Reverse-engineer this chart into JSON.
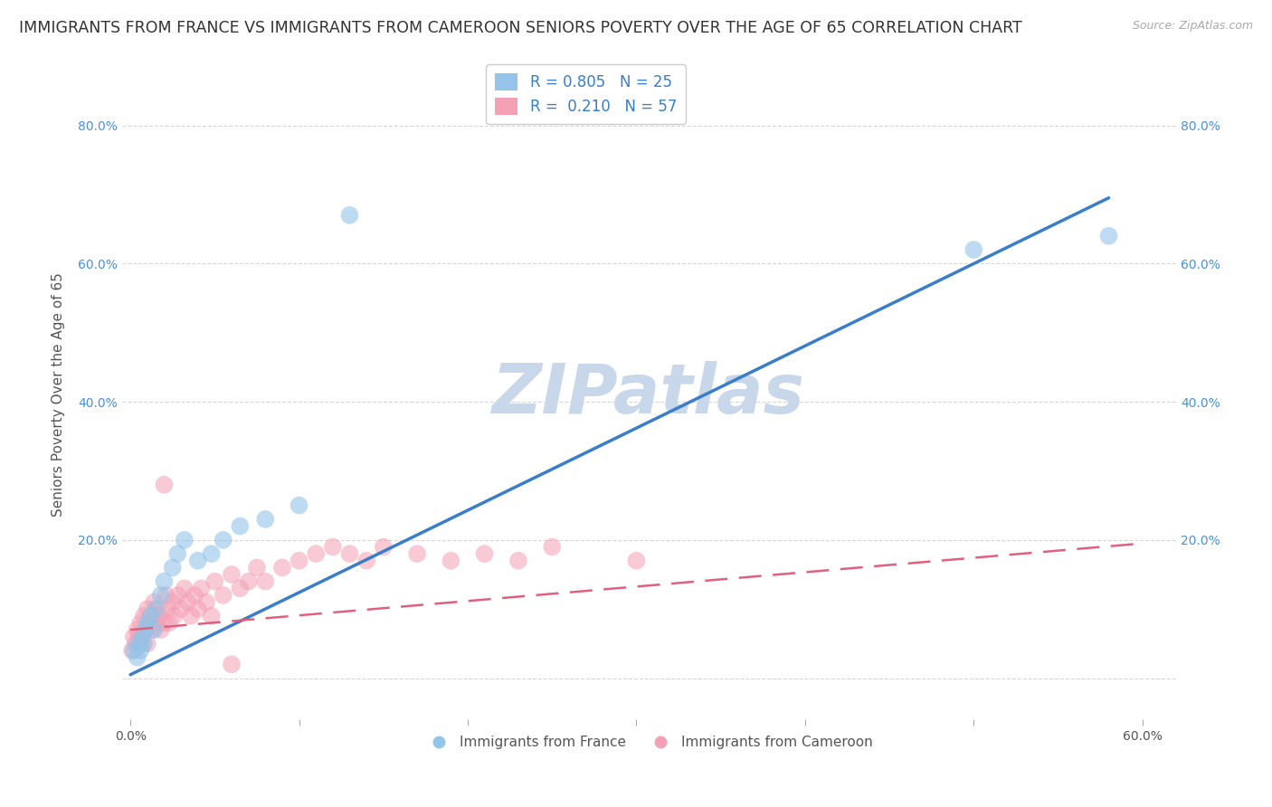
{
  "title": "IMMIGRANTS FROM FRANCE VS IMMIGRANTS FROM CAMEROON SENIORS POVERTY OVER THE AGE OF 65 CORRELATION CHART",
  "source": "Source: ZipAtlas.com",
  "ylabel": "Seniors Poverty Over the Age of 65",
  "watermark": "ZIPatlas",
  "xlim": [
    -0.005,
    0.62
  ],
  "ylim": [
    -0.06,
    0.88
  ],
  "france_color": "#94c4e8",
  "cameroon_color": "#f4a0b5",
  "france_R": 0.805,
  "france_N": 25,
  "cameroon_R": 0.21,
  "cameroon_N": 57,
  "france_line_x": [
    0.0,
    0.58
  ],
  "france_line_y": [
    0.005,
    0.695
  ],
  "cameroon_line_x": [
    0.0,
    0.6
  ],
  "cameroon_line_y": [
    0.07,
    0.195
  ],
  "legend_france_label": "R = 0.805   N = 25",
  "legend_cameroon_label": "R =  0.210   N = 57",
  "legend_bottom_france": "Immigrants from France",
  "legend_bottom_cameroon": "Immigrants from Cameroon",
  "background_color": "#ffffff",
  "grid_color": "#cccccc",
  "title_fontsize": 12.5,
  "axis_label_fontsize": 11,
  "tick_fontsize": 10,
  "legend_fontsize": 12,
  "watermark_color": "#c8d8ea",
  "watermark_fontsize": 55,
  "france_scatter_x": [
    0.002,
    0.004,
    0.005,
    0.006,
    0.007,
    0.008,
    0.009,
    0.01,
    0.012,
    0.014,
    0.015,
    0.018,
    0.02,
    0.025,
    0.028,
    0.032,
    0.04,
    0.048,
    0.055,
    0.065,
    0.08,
    0.1,
    0.13,
    0.5,
    0.58
  ],
  "france_scatter_y": [
    0.04,
    0.03,
    0.05,
    0.04,
    0.06,
    0.05,
    0.07,
    0.08,
    0.09,
    0.07,
    0.1,
    0.12,
    0.14,
    0.16,
    0.18,
    0.2,
    0.17,
    0.18,
    0.2,
    0.22,
    0.23,
    0.25,
    0.67,
    0.62,
    0.64
  ],
  "cameroon_scatter_x": [
    0.001,
    0.002,
    0.003,
    0.004,
    0.005,
    0.006,
    0.007,
    0.008,
    0.009,
    0.01,
    0.01,
    0.011,
    0.012,
    0.013,
    0.014,
    0.015,
    0.016,
    0.017,
    0.018,
    0.02,
    0.021,
    0.022,
    0.023,
    0.025,
    0.026,
    0.028,
    0.03,
    0.032,
    0.034,
    0.036,
    0.038,
    0.04,
    0.042,
    0.045,
    0.048,
    0.05,
    0.055,
    0.06,
    0.065,
    0.07,
    0.075,
    0.08,
    0.09,
    0.1,
    0.11,
    0.12,
    0.13,
    0.14,
    0.15,
    0.17,
    0.19,
    0.21,
    0.23,
    0.25,
    0.3,
    0.02,
    0.06
  ],
  "cameroon_scatter_y": [
    0.04,
    0.06,
    0.05,
    0.07,
    0.06,
    0.08,
    0.05,
    0.09,
    0.07,
    0.05,
    0.1,
    0.08,
    0.09,
    0.07,
    0.11,
    0.08,
    0.1,
    0.09,
    0.07,
    0.08,
    0.12,
    0.1,
    0.08,
    0.11,
    0.09,
    0.12,
    0.1,
    0.13,
    0.11,
    0.09,
    0.12,
    0.1,
    0.13,
    0.11,
    0.09,
    0.14,
    0.12,
    0.15,
    0.13,
    0.14,
    0.16,
    0.14,
    0.16,
    0.17,
    0.18,
    0.19,
    0.18,
    0.17,
    0.19,
    0.18,
    0.17,
    0.18,
    0.17,
    0.19,
    0.17,
    0.28,
    0.02
  ]
}
